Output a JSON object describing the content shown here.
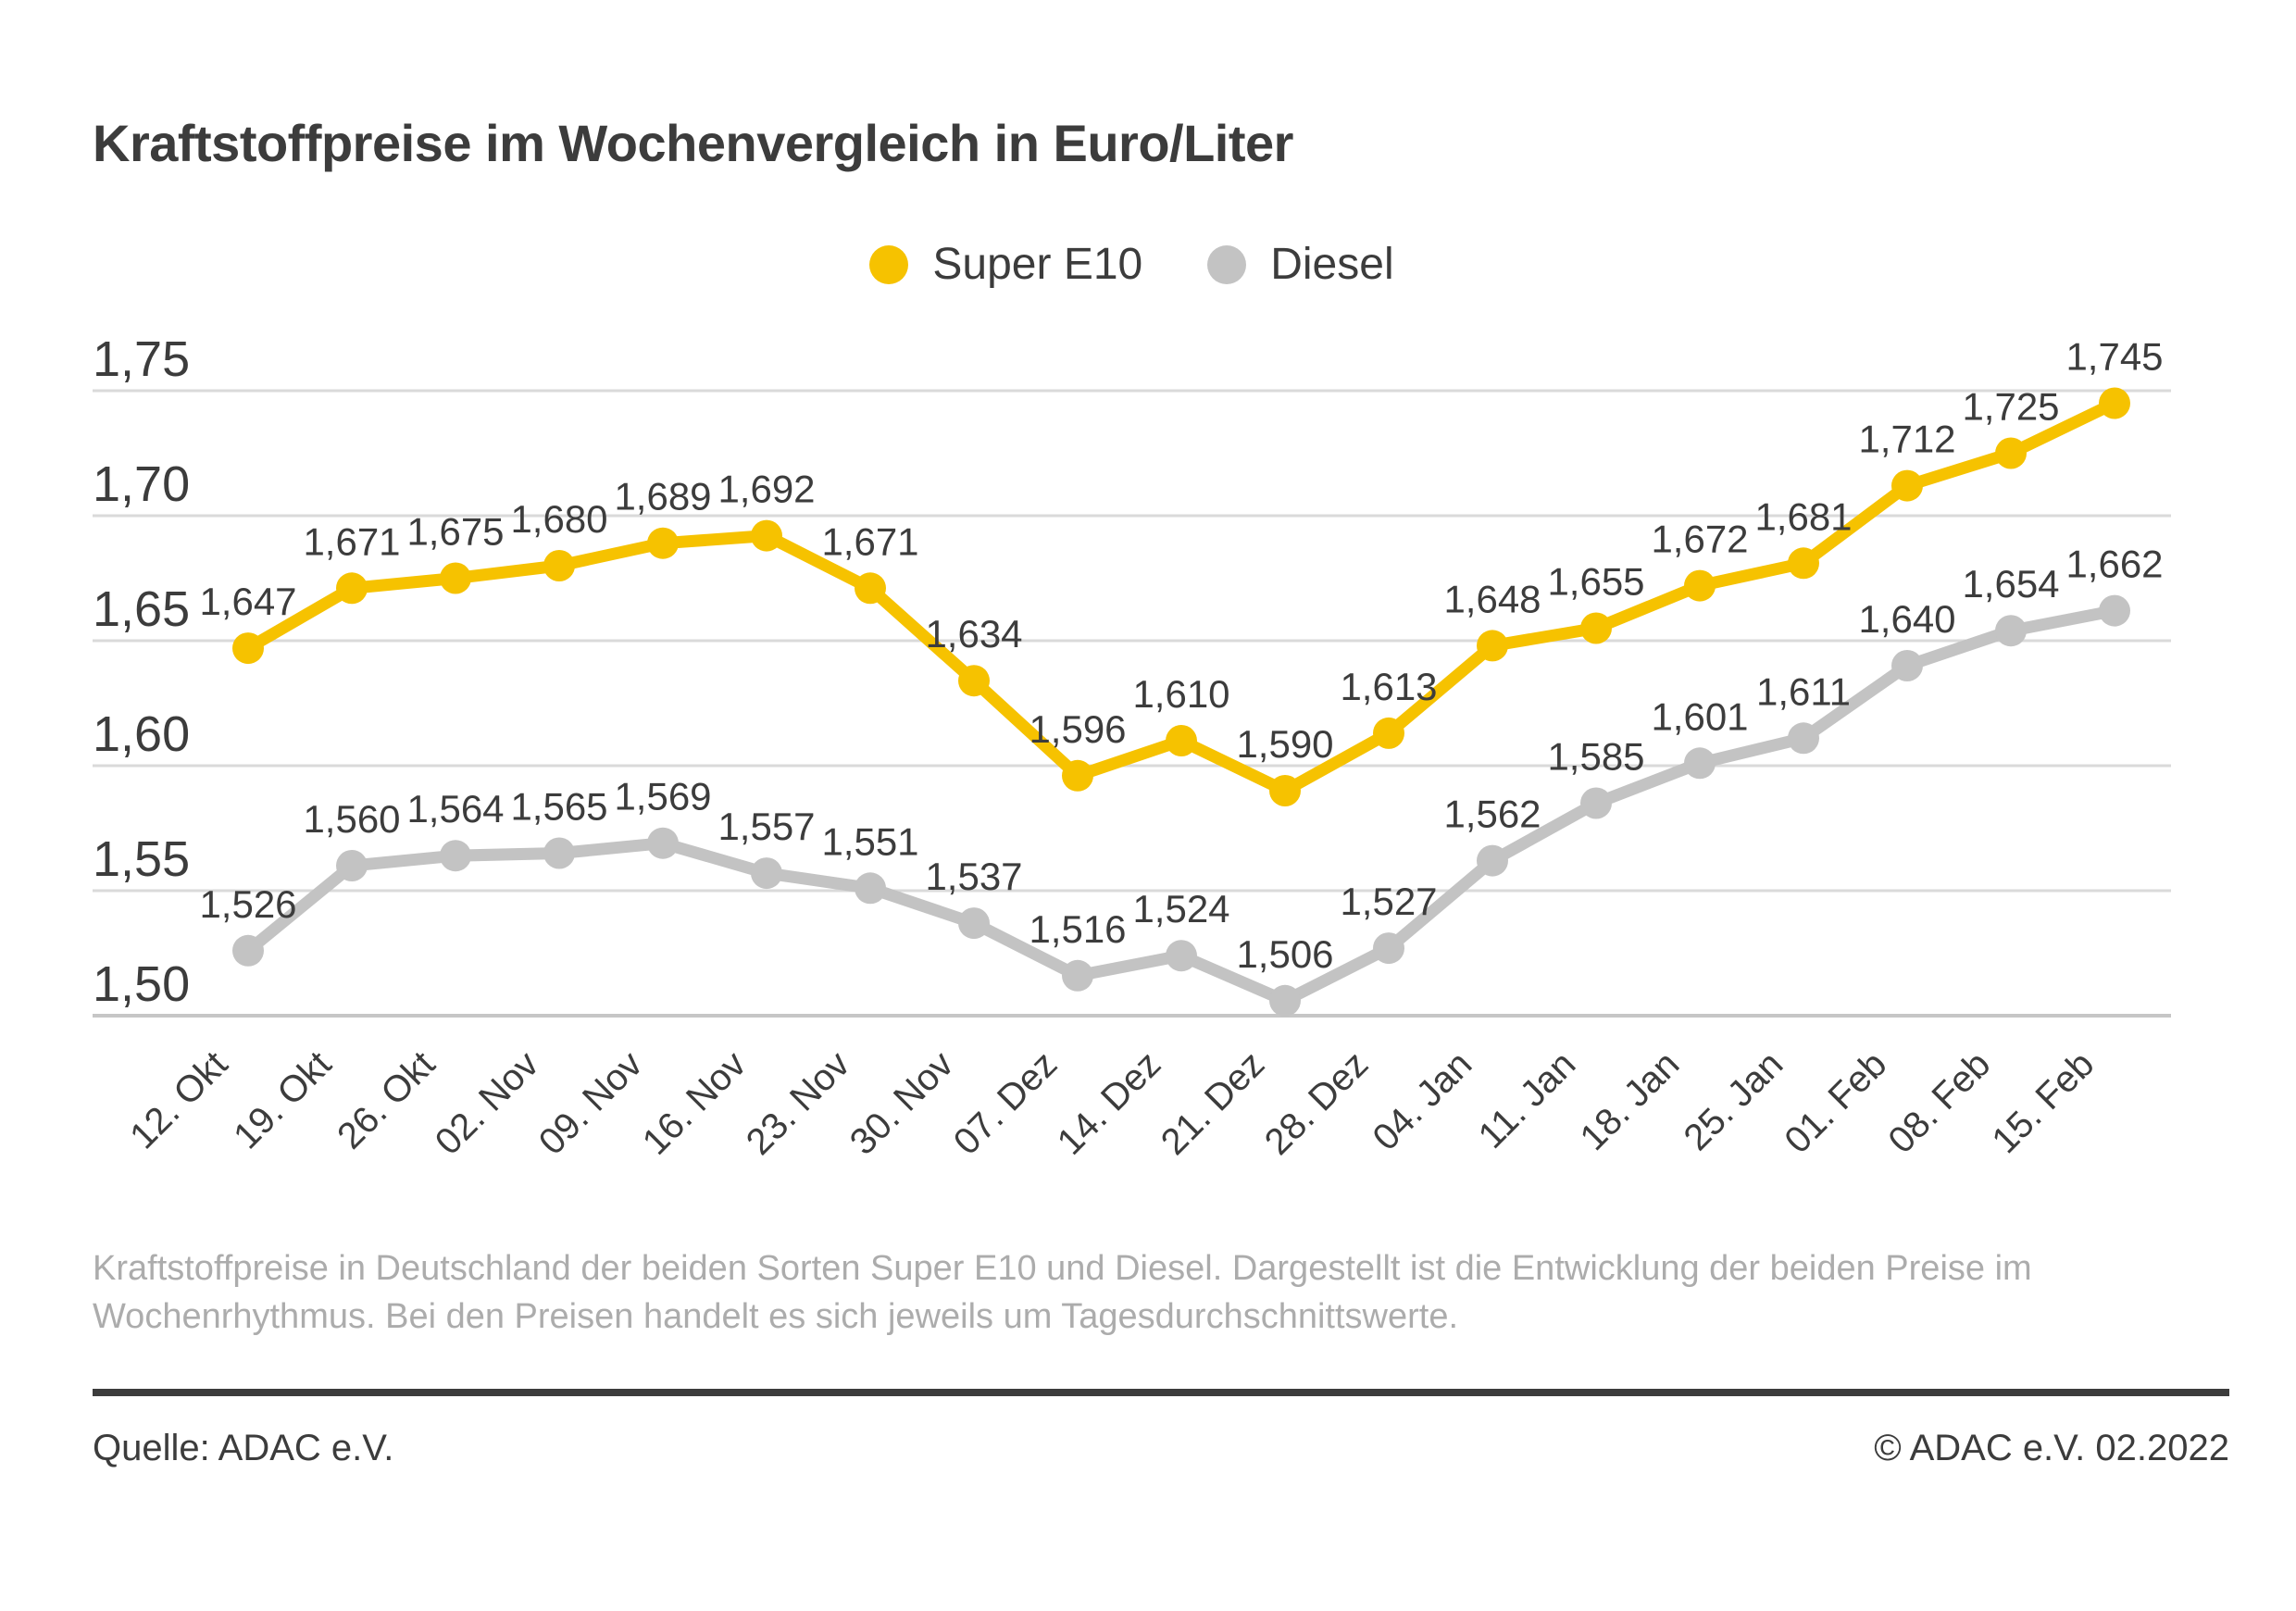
{
  "title": "Kraftstoffpreise im Wochenvergleich in Euro/Liter",
  "chart_data": {
    "type": "line",
    "title": "Kraftstoffpreise im Wochenvergleich in Euro/Liter",
    "unit": "Euro/Liter",
    "categories": [
      "12. Okt",
      "19. Okt",
      "26. Okt",
      "02. Nov",
      "09. Nov",
      "16. Nov",
      "23. Nov",
      "30. Nov",
      "07. Dez",
      "14. Dez",
      "21. Dez",
      "28. Dez",
      "04. Jan",
      "11. Jan",
      "18. Jan",
      "25. Jan",
      "01. Feb",
      "08. Feb",
      "15. Feb"
    ],
    "series": [
      {
        "name": "Super E10",
        "color": "#F6C200",
        "values": [
          1.647,
          1.671,
          1.675,
          1.68,
          1.689,
          1.692,
          1.671,
          1.634,
          1.596,
          1.61,
          1.59,
          1.613,
          1.648,
          1.655,
          1.672,
          1.681,
          1.712,
          1.725,
          1.745
        ],
        "labels": [
          "1,647",
          "1,671",
          "1,675",
          "1,680",
          "1,689",
          "1,692",
          "1,671",
          "1,634",
          "1,596",
          "1,610",
          "1,590",
          "1,613",
          "1,648",
          "1,655",
          "1,672",
          "1,681",
          "1,712",
          "1,725",
          "1,745"
        ]
      },
      {
        "name": "Diesel",
        "color": "#C3C3C3",
        "values": [
          1.526,
          1.56,
          1.564,
          1.565,
          1.569,
          1.557,
          1.551,
          1.537,
          1.516,
          1.524,
          1.506,
          1.527,
          1.562,
          1.585,
          1.601,
          1.611,
          1.64,
          1.654,
          1.662
        ],
        "labels": [
          "1,526",
          "1,560",
          "1,564",
          "1,565",
          "1,569",
          "1,557",
          "1,551",
          "1,537",
          "1,516",
          "1,524",
          "1,506",
          "1,527",
          "1,562",
          "1,585",
          "1,601",
          "1,611",
          "1,640",
          "1,654",
          "1,662"
        ]
      }
    ],
    "y_ticks": {
      "values": [
        1.75,
        1.7,
        1.65,
        1.6,
        1.55,
        1.5
      ],
      "labels": [
        "1,75",
        "1,70",
        "1,65",
        "1,60",
        "1,55",
        "1,50"
      ]
    },
    "ylim": [
      1.475,
      1.77
    ],
    "xlabel": "",
    "ylabel": "",
    "grid": true,
    "legend_position": "top-center",
    "value_labels": "above-points"
  },
  "caption": {
    "lines": [
      "Kraftstoffpreise in Deutschland der beiden Sorten Super E10 und Diesel. Dargestellt ist die Entwicklung der beiden Preise im",
      "Wochenrhythmus. Bei den Preisen handelt es sich jeweils um Tagesdurchschnittswerte."
    ]
  },
  "footer": {
    "source": "Quelle: ADAC e.V.",
    "copyright": "© ADAC e.V. 02.2022"
  },
  "colors": {
    "accent_yellow": "#F6C200",
    "series_gray": "#C3C3C3",
    "text_dark": "#3C3C3C",
    "text_light": "#ACACAC",
    "gridline": "#DADADA",
    "axis_line": "#C6C6C6",
    "background": "#FFFFFF"
  }
}
